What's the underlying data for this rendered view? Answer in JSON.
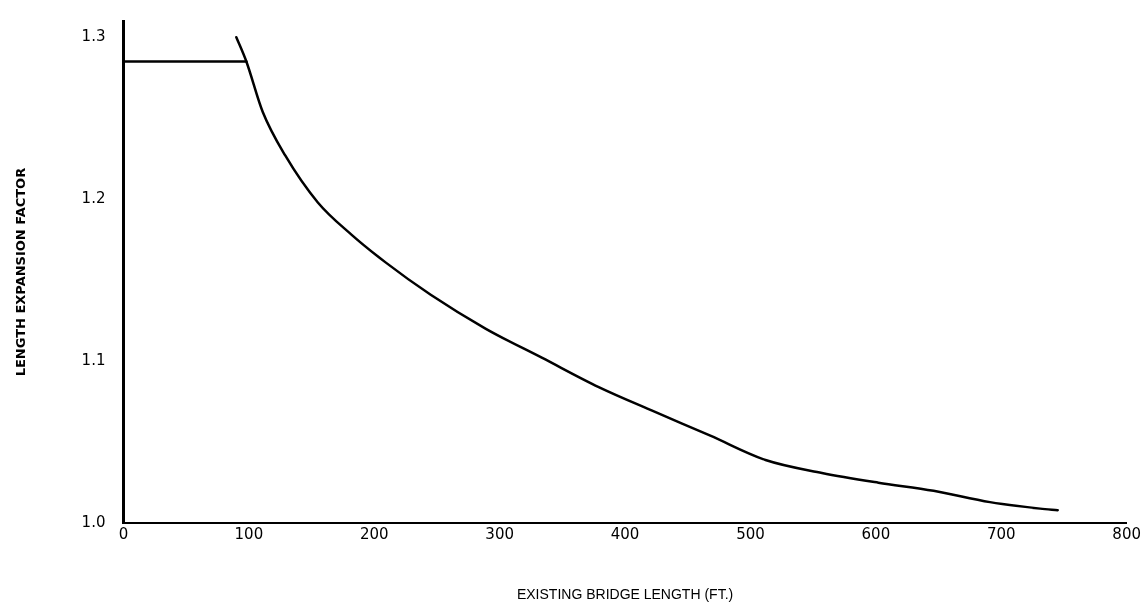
{
  "chart_data": {
    "type": "line",
    "xlabel": "EXISTING BRIDGE LENGTH (FT.)",
    "ylabel": "LENGTH EXPANSION FACTOR",
    "xlim": [
      0,
      800
    ],
    "xticks": [
      0,
      100,
      200,
      300,
      400,
      500,
      600,
      700,
      800
    ],
    "ylim": [
      1.0,
      1.31
    ],
    "yticks": [
      {
        "value": 1.0,
        "label": "1.0"
      },
      {
        "value": 1.1,
        "label": "1.1"
      },
      {
        "value": 1.2,
        "label": "1.2"
      },
      {
        "value": 1.3,
        "label": "1.3"
      }
    ],
    "grid": false,
    "legend": false,
    "marker": "none",
    "line_style": "solid",
    "series": [
      {
        "color": "#000000",
        "x": [
          0,
          98
        ],
        "values": [
          1.285,
          1.285
        ]
      },
      {
        "color": "#000000",
        "x": [
          90,
          98,
          111,
          129,
          155,
          182,
          209,
          245,
          289,
          334,
          379,
          423,
          468,
          512,
          557,
          602,
          646,
          691,
          731,
          745
        ],
        "values": [
          1.3,
          1.285,
          1.254,
          1.227,
          1.198,
          1.178,
          1.161,
          1.141,
          1.12,
          1.102,
          1.084,
          1.069,
          1.054,
          1.039,
          1.031,
          1.025,
          1.02,
          1.013,
          1.009,
          1.008
        ]
      }
    ]
  }
}
